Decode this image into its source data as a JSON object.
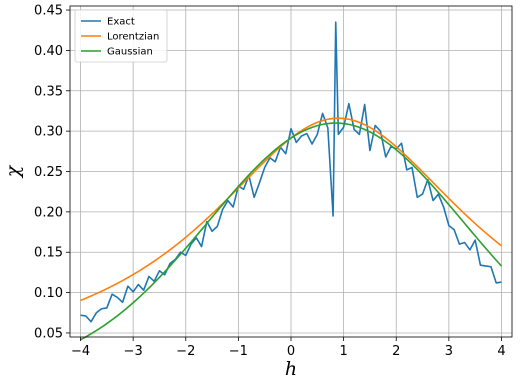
{
  "chart_data": {
    "type": "line",
    "title": "",
    "xlabel": "h",
    "ylabel": "χ",
    "xlim": [
      -4.2,
      4.2
    ],
    "ylim": [
      0.045,
      0.455
    ],
    "xticks": [
      -4,
      -3,
      -2,
      -1,
      0,
      1,
      2,
      3,
      4
    ],
    "yticks": [
      0.05,
      0.1,
      0.15,
      0.2,
      0.25,
      0.3,
      0.35,
      0.4,
      0.45
    ],
    "xtick_labels": [
      "−4",
      "−3",
      "−2",
      "−1",
      "0",
      "1",
      "2",
      "3",
      "4"
    ],
    "ytick_labels": [
      "0.05",
      "0.10",
      "0.15",
      "0.20",
      "0.25",
      "0.30",
      "0.35",
      "0.40",
      "0.45"
    ],
    "grid": true,
    "legend_position": "top-left",
    "series": [
      {
        "name": "Exact",
        "color": "#1f77b4",
        "x": [
          -4.0,
          -3.9,
          -3.8,
          -3.7,
          -3.6,
          -3.5,
          -3.4,
          -3.3,
          -3.2,
          -3.1,
          -3.0,
          -2.9,
          -2.8,
          -2.7,
          -2.6,
          -2.5,
          -2.4,
          -2.3,
          -2.2,
          -2.1,
          -2.0,
          -1.9,
          -1.8,
          -1.7,
          -1.6,
          -1.5,
          -1.4,
          -1.3,
          -1.2,
          -1.1,
          -1.0,
          -0.9,
          -0.8,
          -0.7,
          -0.6,
          -0.5,
          -0.4,
          -0.3,
          -0.2,
          -0.1,
          0.0,
          0.1,
          0.2,
          0.3,
          0.4,
          0.5,
          0.6,
          0.7,
          0.8,
          0.85,
          0.9,
          1.0,
          1.1,
          1.2,
          1.3,
          1.4,
          1.5,
          1.6,
          1.7,
          1.8,
          1.9,
          2.0,
          2.1,
          2.2,
          2.3,
          2.4,
          2.5,
          2.6,
          2.7,
          2.8,
          2.9,
          3.0,
          3.1,
          3.2,
          3.3,
          3.4,
          3.5,
          3.6,
          3.7,
          3.8,
          3.9,
          4.0
        ],
        "y": [
          0.072,
          0.071,
          0.064,
          0.075,
          0.08,
          0.081,
          0.098,
          0.094,
          0.088,
          0.108,
          0.101,
          0.11,
          0.103,
          0.12,
          0.114,
          0.127,
          0.122,
          0.136,
          0.141,
          0.15,
          0.146,
          0.16,
          0.168,
          0.157,
          0.188,
          0.176,
          0.182,
          0.203,
          0.214,
          0.206,
          0.232,
          0.228,
          0.245,
          0.218,
          0.236,
          0.255,
          0.267,
          0.262,
          0.28,
          0.272,
          0.303,
          0.286,
          0.294,
          0.297,
          0.284,
          0.296,
          0.322,
          0.304,
          0.195,
          0.435,
          0.296,
          0.305,
          0.334,
          0.302,
          0.296,
          0.333,
          0.276,
          0.307,
          0.3,
          0.268,
          0.281,
          0.278,
          0.285,
          0.252,
          0.255,
          0.218,
          0.222,
          0.24,
          0.214,
          0.222,
          0.206,
          0.183,
          0.178,
          0.16,
          0.162,
          0.153,
          0.165,
          0.134,
          0.133,
          0.132,
          0.112,
          0.113
        ]
      },
      {
        "name": "Lorentzian",
        "color": "#ff7f0e",
        "center": 0.9,
        "amplitude": 0.316,
        "gamma": 3.1,
        "x_range": [
          -4,
          4
        ]
      },
      {
        "name": "Gaussian",
        "color": "#2ca02c",
        "center": 0.85,
        "amplitude": 0.31,
        "sigma": 2.42,
        "x_range": [
          -4,
          4
        ]
      }
    ]
  }
}
